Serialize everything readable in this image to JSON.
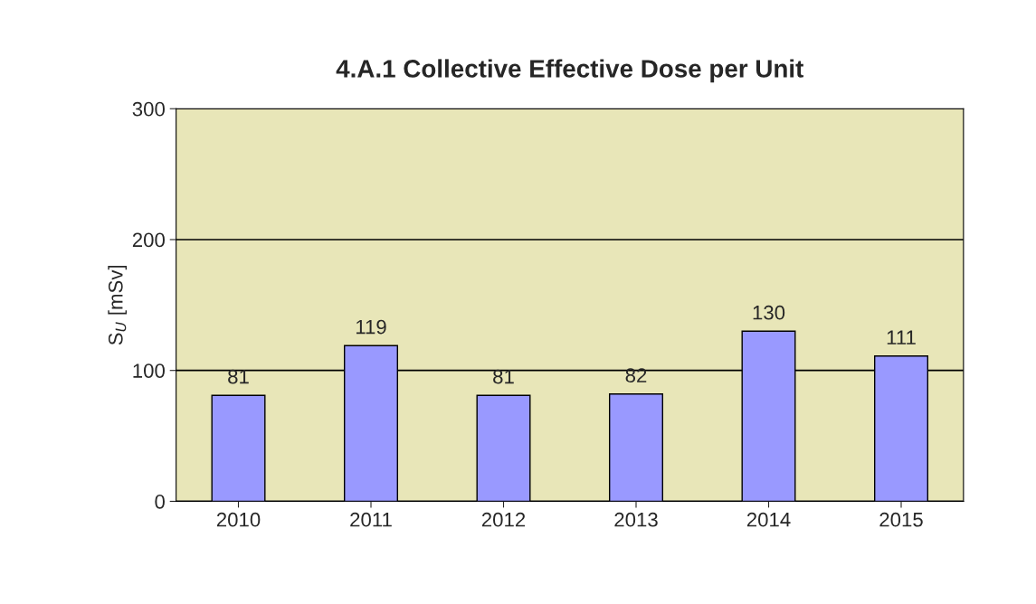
{
  "chart_data": {
    "type": "bar",
    "title": "4.A.1 Collective Effective Dose per Unit",
    "ylabel": "S$_{U}$ [mSv]",
    "categories": [
      "2010",
      "2011",
      "2012",
      "2013",
      "2014",
      "2015"
    ],
    "values": [
      81,
      119,
      81,
      82,
      130,
      111
    ],
    "color": "#9999ff",
    "ylim": [
      0,
      300
    ],
    "yticks": [
      0,
      100,
      200,
      300
    ],
    "grid": "y",
    "data_labels": true
  }
}
